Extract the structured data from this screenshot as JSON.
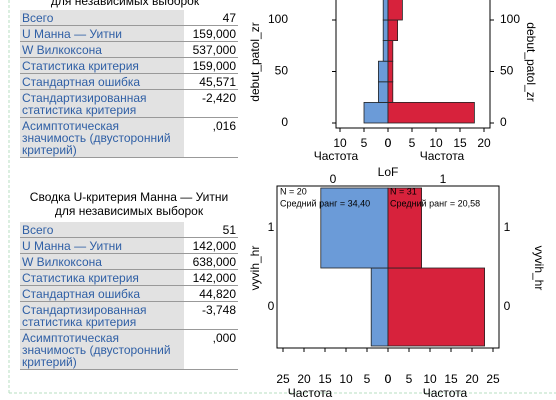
{
  "tables": [
    {
      "title": "для независимых выборок",
      "rows": [
        [
          "Всего",
          "47"
        ],
        [
          "U Манна — Уитни",
          "159,000"
        ],
        [
          "W Вилкоксона",
          "537,000"
        ],
        [
          "Статистика критерия",
          "159,000"
        ],
        [
          "Стандартная ошибка",
          "45,571"
        ],
        [
          "Стандартизированная статистика критерия",
          "-2,420"
        ],
        [
          "Асимптотическая значимость (двусторонний критерий)",
          ",016"
        ]
      ]
    },
    {
      "title": "Сводка U-критерия Манна — Уитни для независимых выборок",
      "rows": [
        [
          "Всего",
          "51"
        ],
        [
          "U Манна — Уитни",
          "142,000"
        ],
        [
          "W Вилкоксона",
          "638,000"
        ],
        [
          "Статистика критерия",
          "142,000"
        ],
        [
          "Стандартная ошибка",
          "44,820"
        ],
        [
          "Стандартизированная статистика критерия",
          "-3,748"
        ],
        [
          "Асимптотическая значимость (двусторонний критерий)",
          ",000"
        ]
      ]
    }
  ],
  "charts": [
    {
      "type": "histogram",
      "ylabel": "debut_patol_zr",
      "ylim": [
        0,
        120
      ],
      "yticks": [
        0,
        50,
        100
      ],
      "bins": [
        0,
        20,
        40,
        60,
        80,
        100,
        120
      ],
      "left": {
        "color": "#6b9bd8",
        "values": [
          5,
          2,
          2,
          1,
          1,
          1
        ],
        "xticks": [
          10,
          5,
          0
        ],
        "xlabel": "Частота"
      },
      "right": {
        "color": "#d7223c",
        "values": [
          18,
          1,
          1,
          1,
          2,
          3
        ],
        "xticks": [
          0,
          5,
          10,
          15,
          20
        ],
        "xlabel": "Частота"
      },
      "group_title": "LoF"
    },
    {
      "type": "bar",
      "ylabel": "vyvih_hr",
      "categories": [
        "0",
        "1"
      ],
      "group_labels": [
        "0",
        "1"
      ],
      "left": {
        "color": "#6b9bd8",
        "values": [
          4,
          16
        ],
        "xticks": [
          25,
          20,
          15,
          10,
          5,
          0
        ],
        "xlabel": "Частота",
        "annotation": [
          "N = 20",
          "Средний ранг = 34,40"
        ]
      },
      "right": {
        "color": "#d7223c",
        "values": [
          23,
          8
        ],
        "xticks": [
          0,
          5,
          10,
          15,
          20,
          25
        ],
        "xlabel": "Частота",
        "annotation": [
          "N = 31",
          "Средний ранг = 20,58"
        ]
      }
    }
  ]
}
